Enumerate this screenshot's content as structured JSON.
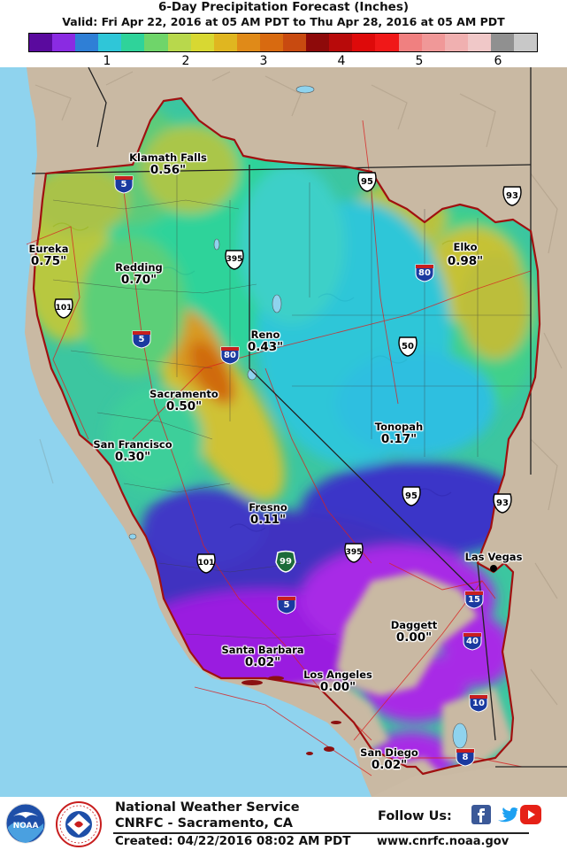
{
  "header": {
    "title": "6-Day Precipitation Forecast (Inches)",
    "valid": "Valid: Fri Apr 22, 2016 at 05 AM PDT to Thu Apr 28, 2016 at 05 AM PDT"
  },
  "legend": {
    "colors": [
      "#5a0a9e",
      "#8a2be2",
      "#2f7fd6",
      "#2fc6d8",
      "#2fd39a",
      "#6fd56a",
      "#b8d84c",
      "#d8d832",
      "#e0b620",
      "#e08a18",
      "#d86a10",
      "#c84a10",
      "#8e0a0a",
      "#b80a0a",
      "#de0a0a",
      "#f01818",
      "#f08080",
      "#f09898",
      "#f0b0b0",
      "#f0c8c8",
      "#909090",
      "#c8c8c8"
    ],
    "ticks": [
      "1",
      "2",
      "3",
      "4",
      "5",
      "6"
    ]
  },
  "cities": [
    {
      "name": "Klamath Falls",
      "value": "0.56\""
    },
    {
      "name": "Eureka",
      "value": "0.75\""
    },
    {
      "name": "Redding",
      "value": "0.70\""
    },
    {
      "name": "Elko",
      "value": "0.98\""
    },
    {
      "name": "Reno",
      "value": "0.43\""
    },
    {
      "name": "Sacramento",
      "value": "0.50\""
    },
    {
      "name": "San Francisco",
      "value": "0.30\""
    },
    {
      "name": "Tonopah",
      "value": "0.17\""
    },
    {
      "name": "Fresno",
      "value": "0.11\""
    },
    {
      "name": "Las Vegas",
      "value": ""
    },
    {
      "name": "Daggett",
      "value": "0.00\""
    },
    {
      "name": "Santa Barbara",
      "value": "0.02\""
    },
    {
      "name": "Los Angeles",
      "value": "0.00\""
    },
    {
      "name": "San Diego",
      "value": "0.02\""
    }
  ],
  "highways": {
    "interstates": [
      "5",
      "80",
      "5",
      "80",
      "5",
      "15",
      "40",
      "10",
      "8"
    ],
    "us_routes": [
      "95",
      "93",
      "395",
      "101",
      "50",
      "95",
      "93",
      "395",
      "101"
    ],
    "us_prefix": "US",
    "interstate_prefix": "INTERSTATE",
    "state_routes": [
      "99"
    ]
  },
  "footer": {
    "agency": "National Weather Service",
    "office": "CNRFC - Sacramento, CA",
    "created": "Created: 04/22/2016 08:02 AM PDT",
    "follow": "Follow Us:",
    "url": "www.cnrfc.noaa.gov",
    "noaa_logo_text": "NOAA",
    "nws_seal_text": "NATIONAL WEATHER SERVICE"
  },
  "map_colors": {
    "ocean": "#8fd3ee",
    "land": "#c8b8a2",
    "state_line": "#222222",
    "boundary": "#a01010"
  }
}
